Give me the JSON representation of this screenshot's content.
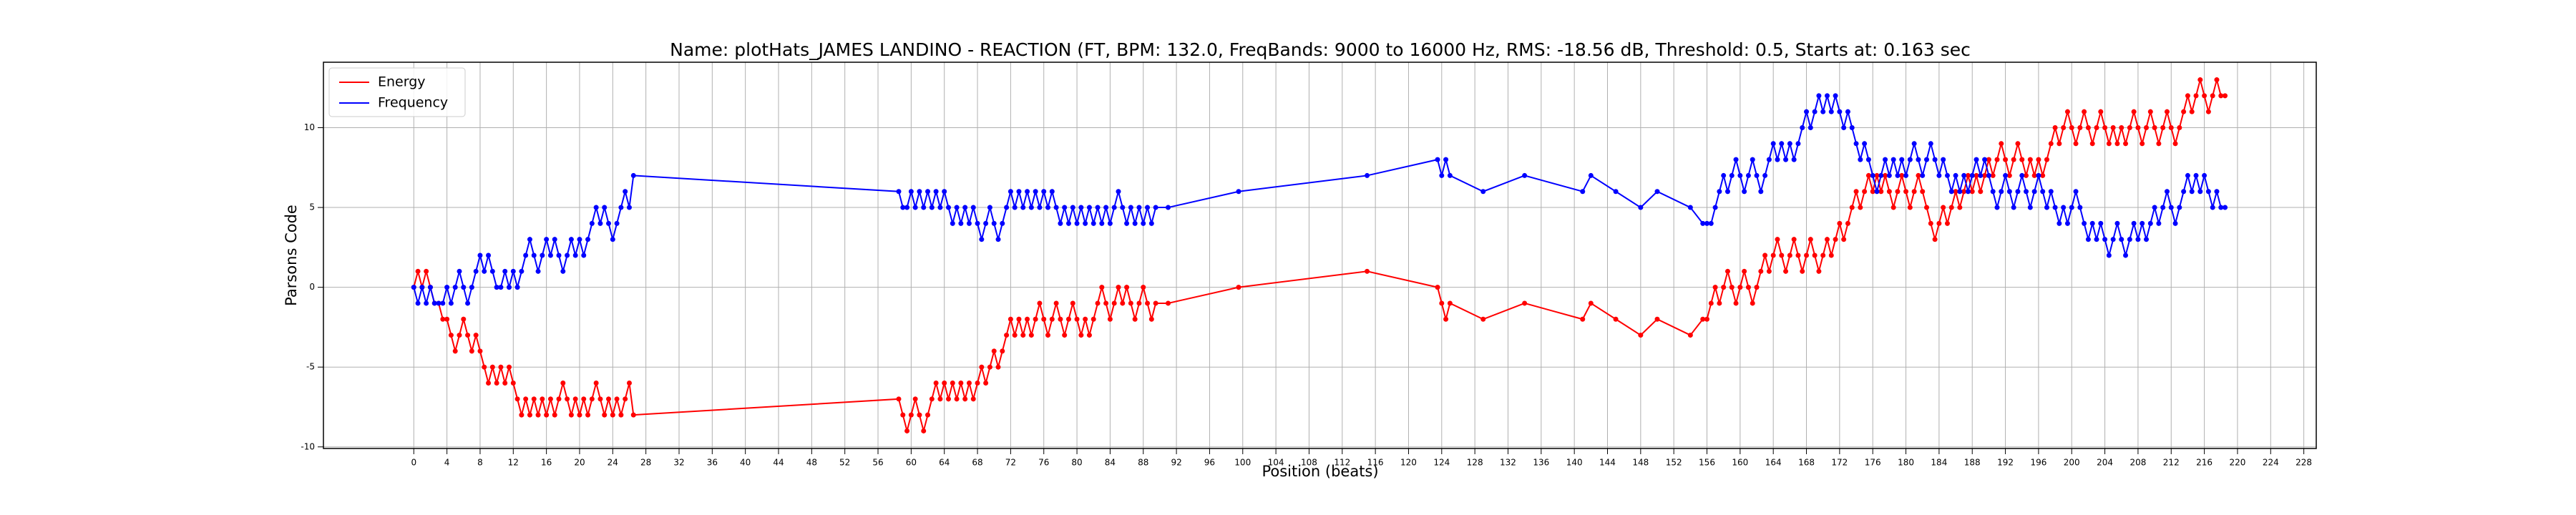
{
  "chart_data": {
    "type": "line",
    "title": "Name: plotHats_JAMES LANDINO - REACTION (FT, BPM: 132.0, FreqBands: 9000 to 16000 Hz, RMS: -18.56 dB, Threshold: 0.5, Starts at: 0.163 sec",
    "xlabel": "Position (beats)",
    "ylabel": "Parsons Code",
    "x": [
      0,
      0.5,
      1,
      1.5,
      2,
      2.5,
      3,
      3.5,
      4,
      4.5,
      5,
      5.5,
      6,
      6.5,
      7,
      7.5,
      8,
      8.5,
      9,
      9.5,
      10,
      10.5,
      11,
      11.5,
      12,
      12.5,
      13,
      13.5,
      14,
      14.5,
      15,
      15.5,
      16,
      16.5,
      17,
      17.5,
      18,
      18.5,
      19,
      19.5,
      20,
      20.5,
      21,
      21.5,
      22,
      22.5,
      23,
      23.5,
      24,
      24.5,
      25,
      25.5,
      26,
      26.5,
      58.5,
      59,
      59.5,
      60,
      60.5,
      61,
      61.5,
      62,
      62.5,
      63,
      63.5,
      64,
      64.5,
      65,
      65.5,
      66,
      66.5,
      67,
      67.5,
      68,
      68.5,
      69,
      69.5,
      70,
      70.5,
      71,
      71.5,
      72,
      72.5,
      73,
      73.5,
      74,
      74.5,
      75,
      75.5,
      76,
      76.5,
      77,
      77.5,
      78,
      78.5,
      79,
      79.5,
      80,
      80.5,
      81,
      81.5,
      82,
      82.5,
      83,
      83.5,
      84,
      84.5,
      85,
      85.5,
      86,
      86.5,
      87,
      87.5,
      88,
      88.5,
      89,
      89.5,
      91,
      99.5,
      115,
      123.5,
      124,
      124.5,
      125,
      129,
      134,
      141,
      142,
      145,
      148,
      150,
      154,
      155.5,
      156,
      156.5,
      157,
      157.5,
      158,
      158.5,
      159,
      159.5,
      160,
      160.5,
      161,
      161.5,
      162,
      162.5,
      163,
      163.5,
      164,
      164.5,
      165,
      165.5,
      166,
      166.5,
      167,
      167.5,
      168,
      168.5,
      169,
      169.5,
      170,
      170.5,
      171,
      171.5,
      172,
      172.5,
      173,
      173.5,
      174,
      174.5,
      175,
      175.5,
      176,
      176.5,
      177,
      177.5,
      178,
      178.5,
      179,
      179.5,
      180,
      180.5,
      181,
      181.5,
      182,
      182.5,
      183,
      183.5,
      184,
      184.5,
      185,
      185.5,
      186,
      186.5,
      187,
      187.5,
      188,
      188.5,
      189,
      189.5,
      190,
      190.5,
      191,
      191.5,
      192,
      192.5,
      193,
      193.5,
      194,
      194.5,
      195,
      195.5,
      196,
      196.5,
      197,
      197.5,
      198,
      198.5,
      199,
      199.5,
      200,
      200.5,
      201,
      201.5,
      202,
      202.5,
      203,
      203.5,
      204,
      204.5,
      205,
      205.5,
      206,
      206.5,
      207,
      207.5,
      208,
      208.5,
      209,
      209.5,
      210,
      210.5,
      211,
      211.5,
      212,
      212.5,
      213,
      213.5,
      214,
      214.5,
      215,
      215.5,
      216,
      216.5,
      217,
      217.5,
      218,
      218.5
    ],
    "series": [
      {
        "name": "Energy",
        "color": "#ff0000",
        "values": [
          0,
          1,
          0,
          1,
          0,
          -1,
          -1,
          -2,
          -2,
          -3,
          -4,
          -3,
          -2,
          -3,
          -4,
          -3,
          -4,
          -5,
          -6,
          -5,
          -6,
          -5,
          -6,
          -5,
          -6,
          -7,
          -8,
          -7,
          -8,
          -7,
          -8,
          -7,
          -8,
          -7,
          -8,
          -7,
          -6,
          -7,
          -8,
          -7,
          -8,
          -7,
          -8,
          -7,
          -6,
          -7,
          -8,
          -7,
          -8,
          -7,
          -8,
          -7,
          -6,
          -8,
          -7,
          -8,
          -9,
          -8,
          -7,
          -8,
          -9,
          -8,
          -7,
          -6,
          -7,
          -6,
          -7,
          -6,
          -7,
          -6,
          -7,
          -6,
          -7,
          -6,
          -5,
          -6,
          -5,
          -4,
          -5,
          -4,
          -3,
          -2,
          -3,
          -2,
          -3,
          -2,
          -3,
          -2,
          -1,
          -2,
          -3,
          -2,
          -1,
          -2,
          -3,
          -2,
          -1,
          -2,
          -3,
          -2,
          -3,
          -2,
          -1,
          0,
          -1,
          -2,
          -1,
          0,
          -1,
          0,
          -1,
          -2,
          -1,
          0,
          -1,
          -2,
          -1,
          -1,
          0,
          1,
          0,
          -1,
          -2,
          -1,
          -2,
          -1,
          -2,
          -1,
          -2,
          -3,
          -2,
          -3,
          -2,
          -2,
          -1,
          0,
          -1,
          0,
          1,
          0,
          -1,
          0,
          1,
          0,
          -1,
          0,
          1,
          2,
          1,
          2,
          3,
          2,
          1,
          2,
          3,
          2,
          1,
          2,
          3,
          2,
          1,
          2,
          3,
          2,
          3,
          4,
          3,
          4,
          5,
          6,
          5,
          6,
          7,
          6,
          7,
          6,
          7,
          6,
          5,
          6,
          7,
          6,
          5,
          6,
          7,
          6,
          5,
          4,
          3,
          4,
          5,
          4,
          5,
          6,
          5,
          6,
          7,
          6,
          7,
          6,
          7,
          8,
          7,
          8,
          9,
          8,
          7,
          8,
          9,
          8,
          7,
          8,
          7,
          8,
          7,
          8,
          9,
          10,
          9,
          10,
          11,
          10,
          9,
          10,
          11,
          10,
          9,
          10,
          11,
          10,
          9,
          10,
          9,
          10,
          9,
          10,
          11,
          10,
          9,
          10,
          11,
          10,
          9,
          10,
          11,
          10,
          9,
          10,
          11,
          12,
          11,
          12,
          13,
          12,
          11,
          12,
          13,
          12,
          12
        ]
      },
      {
        "name": "Frequency",
        "color": "#0000ff",
        "values": [
          0,
          -1,
          0,
          -1,
          0,
          -1,
          -1,
          -1,
          0,
          -1,
          0,
          1,
          0,
          -1,
          0,
          1,
          2,
          1,
          2,
          1,
          0,
          0,
          1,
          0,
          1,
          0,
          1,
          2,
          3,
          2,
          1,
          2,
          3,
          2,
          3,
          2,
          1,
          2,
          3,
          2,
          3,
          2,
          3,
          4,
          5,
          4,
          5,
          4,
          3,
          4,
          5,
          6,
          5,
          7,
          6,
          5,
          5,
          6,
          5,
          6,
          5,
          6,
          5,
          6,
          5,
          6,
          5,
          4,
          5,
          4,
          5,
          4,
          5,
          4,
          3,
          4,
          5,
          4,
          3,
          4,
          5,
          6,
          5,
          6,
          5,
          6,
          5,
          6,
          5,
          6,
          5,
          6,
          5,
          4,
          5,
          4,
          5,
          4,
          5,
          4,
          5,
          4,
          5,
          4,
          5,
          4,
          5,
          6,
          5,
          4,
          5,
          4,
          5,
          4,
          5,
          4,
          5,
          5,
          6,
          7,
          8,
          7,
          8,
          7,
          6,
          7,
          6,
          7,
          6,
          5,
          6,
          5,
          4,
          4,
          4,
          5,
          6,
          7,
          6,
          7,
          8,
          7,
          6,
          7,
          8,
          7,
          6,
          7,
          8,
          9,
          8,
          9,
          8,
          9,
          8,
          9,
          10,
          11,
          10,
          11,
          12,
          11,
          12,
          11,
          12,
          11,
          10,
          11,
          10,
          9,
          8,
          9,
          8,
          7,
          6,
          7,
          8,
          7,
          8,
          7,
          8,
          7,
          8,
          9,
          8,
          7,
          8,
          9,
          8,
          7,
          8,
          7,
          6,
          7,
          6,
          7,
          6,
          7,
          8,
          7,
          8,
          7,
          6,
          5,
          6,
          7,
          6,
          5,
          6,
          7,
          6,
          5,
          6,
          7,
          6,
          5,
          6,
          5,
          4,
          5,
          4,
          5,
          6,
          5,
          4,
          3,
          4,
          3,
          4,
          3,
          2,
          3,
          4,
          3,
          2,
          3,
          4,
          3,
          4,
          3,
          4,
          5,
          4,
          5,
          6,
          5,
          4,
          5,
          6,
          7,
          6,
          7,
          6,
          7,
          6,
          5,
          6,
          5,
          5
        ]
      }
    ],
    "xlim": [
      -10.9,
      229.5
    ],
    "ylim": [
      -10.1,
      14.1
    ],
    "xticks": [
      0,
      4,
      8,
      12,
      16,
      20,
      24,
      28,
      32,
      36,
      40,
      44,
      48,
      52,
      56,
      60,
      64,
      68,
      72,
      76,
      80,
      84,
      88,
      92,
      96,
      100,
      104,
      108,
      112,
      116,
      120,
      124,
      128,
      132,
      136,
      140,
      144,
      148,
      152,
      156,
      160,
      164,
      168,
      172,
      176,
      180,
      184,
      188,
      192,
      196,
      200,
      204,
      208,
      212,
      216,
      220,
      224,
      228
    ],
    "yticks": [
      -10,
      -5,
      0,
      5,
      10
    ],
    "grid": true,
    "legend": "upper left"
  }
}
